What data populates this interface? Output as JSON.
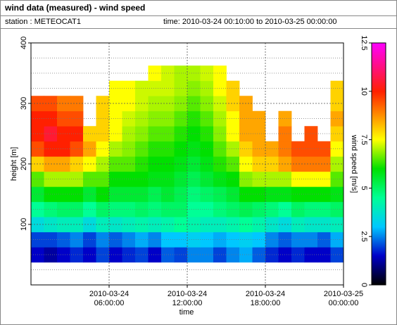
{
  "chart_data": {
    "type": "heatmap",
    "title": "wind data (measured) - wind speed",
    "station": "station : METEOCAT1",
    "time_range": "time: 2010-03-24 00:10:00 to 2010-03-25 00:00:00",
    "x_label": "time",
    "y_label": "height [m]",
    "colorbar_label": "wind speed [m/s]",
    "x": [
      0.5,
      1.5,
      2.5,
      3.5,
      4.5,
      5.5,
      6.5,
      7.5,
      8.5,
      9.5,
      10.5,
      11.5,
      12.5,
      13.5,
      14.5,
      15.5,
      16.5,
      17.5,
      18.5,
      19.5,
      20.5,
      21.5,
      22.5,
      23.5
    ],
    "y": [
      50,
      75,
      100,
      125,
      150,
      175,
      200,
      225,
      250,
      275,
      300,
      325,
      350
    ],
    "z": [
      [
        1.5,
        1.2,
        1.5,
        1.8,
        1.5,
        2,
        1.5,
        1.8,
        2,
        1.5,
        2.2,
        2,
        2.5,
        2.5,
        2,
        2.5,
        2.8,
        2.2,
        1.8,
        1.5,
        1.8,
        1.5,
        1.5,
        2
      ],
      [
        2,
        2,
        2.2,
        2.5,
        2,
        2.5,
        2.2,
        2.5,
        2.8,
        2.5,
        3,
        3,
        3.2,
        3,
        2.8,
        3,
        3.2,
        3,
        2.5,
        2.2,
        2.5,
        2.5,
        2.2,
        2.8
      ],
      [
        3.5,
        3.8,
        4,
        4,
        3.5,
        4,
        3.8,
        4,
        4.2,
        4,
        4.2,
        4.5,
        4.2,
        4,
        4,
        4.2,
        4.5,
        4.2,
        3.8,
        3.5,
        4,
        3.8,
        3.8,
        4
      ],
      [
        4.5,
        4.8,
        5,
        5,
        4.5,
        5,
        4.8,
        4.8,
        5,
        4.8,
        5,
        5,
        4.5,
        4.5,
        4.8,
        5,
        5.2,
        5,
        4.8,
        4.5,
        5,
        4.8,
        4.8,
        5
      ],
      [
        5.5,
        6,
        6,
        6,
        5.5,
        6,
        5.5,
        5.5,
        5.5,
        5.2,
        5.5,
        5.2,
        4.8,
        5,
        5.2,
        5.5,
        6,
        6,
        5.8,
        5.8,
        6,
        6,
        6,
        5.8
      ],
      [
        6.5,
        7,
        7,
        7,
        6.5,
        6.5,
        6,
        6,
        6,
        5.8,
        5.8,
        5.5,
        5.2,
        5.5,
        5.8,
        6,
        6.8,
        7,
        7,
        7,
        7.5,
        7.5,
        7.5,
        6.5
      ],
      [
        8,
        8.5,
        8.5,
        8,
        7.5,
        7,
        6.5,
        6.5,
        6.2,
        6,
        6,
        5.8,
        5.5,
        5.8,
        6.2,
        6.5,
        7.5,
        8,
        8,
        8.5,
        9,
        9,
        9,
        7
      ],
      [
        9.5,
        10,
        10,
        9.5,
        8.5,
        7.5,
        7,
        6.8,
        6.5,
        6.2,
        6.2,
        6,
        5.8,
        6,
        6.5,
        7,
        8,
        8.5,
        8.5,
        9,
        9.5,
        9.5,
        9.5,
        7.5
      ],
      [
        10,
        10.5,
        10,
        10,
        8,
        8,
        7.5,
        7,
        6.8,
        6.5,
        6.5,
        6.2,
        6,
        6.2,
        6.8,
        7.5,
        8.5,
        8.5,
        null,
        9,
        null,
        9.5,
        null,
        8
      ],
      [
        10,
        10,
        9.5,
        9.5,
        null,
        8,
        7.5,
        7.2,
        7,
        6.8,
        6.8,
        6.5,
        6.2,
        6.5,
        7,
        7.5,
        8.5,
        8.5,
        null,
        8.5,
        null,
        null,
        null,
        8.5
      ],
      [
        9.5,
        9.5,
        9,
        9,
        null,
        8,
        7.5,
        7.5,
        7.2,
        7,
        7,
        6.8,
        6.5,
        6.8,
        7.2,
        8,
        8.5,
        null,
        null,
        null,
        null,
        null,
        null,
        8
      ],
      [
        null,
        null,
        null,
        null,
        null,
        null,
        7.5,
        7.5,
        7.2,
        7.2,
        7.2,
        7,
        6.8,
        7,
        7.5,
        8,
        null,
        null,
        null,
        null,
        null,
        null,
        null,
        8
      ],
      [
        null,
        null,
        null,
        null,
        null,
        null,
        null,
        null,
        null,
        7.5,
        7.2,
        7,
        7,
        7.2,
        7.5,
        null,
        null,
        null,
        null,
        null,
        null,
        null,
        null,
        null
      ]
    ],
    "xlim": [
      0,
      24
    ],
    "xticks": [
      {
        "value": 6,
        "label": "2010-03-24 06:00:00"
      },
      {
        "value": 12,
        "label": "2010-03-24 12:00:00"
      },
      {
        "value": 18,
        "label": "2010-03-24 18:00:00"
      },
      {
        "value": 24,
        "label": "2010-03-25 00:00:00"
      }
    ],
    "ylim": [
      0,
      400
    ],
    "yticks": [
      100,
      200,
      300,
      400
    ],
    "yminorticks": [
      25,
      50,
      75,
      125,
      150,
      175,
      225,
      250,
      275,
      325,
      350,
      375
    ],
    "zlim": [
      0,
      12.5
    ],
    "zticks": [
      0,
      2.5,
      5,
      7.5,
      10,
      12.5
    ],
    "colorscale": [
      [
        0,
        "#000000"
      ],
      [
        1.5,
        "#0000c8"
      ],
      [
        3,
        "#00c8ff"
      ],
      [
        4.5,
        "#00ff96"
      ],
      [
        6,
        "#00e000"
      ],
      [
        7.5,
        "#ffff00"
      ],
      [
        10,
        "#ff2000"
      ],
      [
        12.5,
        "#ff00ff"
      ]
    ],
    "grid": true
  }
}
